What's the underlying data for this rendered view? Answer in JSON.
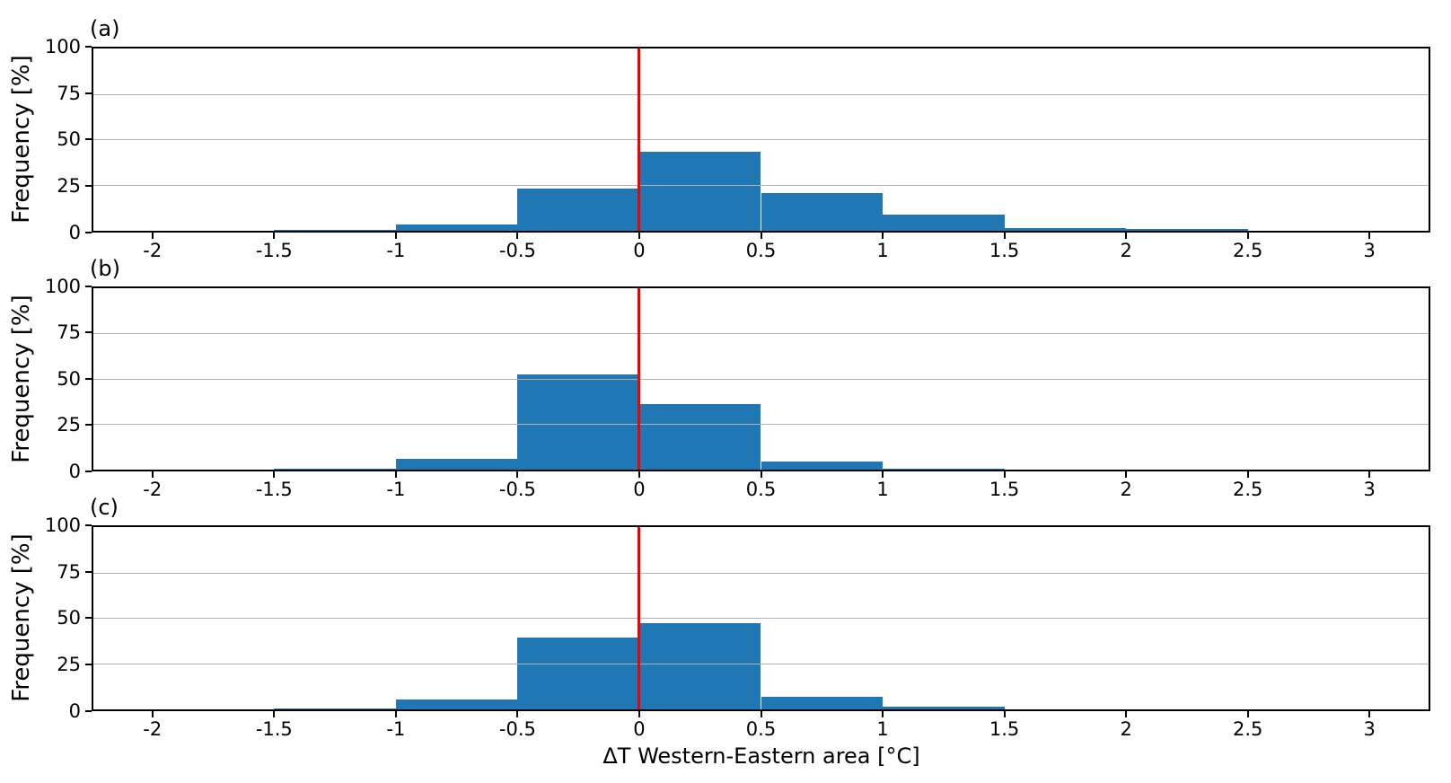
{
  "figure": {
    "xlabel": "ΔT Western-Eastern area [°C]",
    "ylabel": "Frequency [%]",
    "background_color": "#ffffff",
    "bar_color": "#1f77b4",
    "vline_color": "#f20000",
    "grid_color": "#b0b0b0",
    "axis_color": "#000000"
  },
  "chart_data": [
    {
      "type": "bar",
      "subtype": "histogram",
      "panel_label": "(a)",
      "ylabel": "Frequency [%]",
      "bin_edges": [
        -2,
        -1.5,
        -1,
        -0.5,
        0,
        0.5,
        1,
        1.5,
        2,
        2.5,
        3
      ],
      "frequencies_percent": [
        0,
        0.4,
        3.2,
        23.2,
        43.2,
        20.5,
        8.8,
        1.4,
        0.6,
        0
      ],
      "xlim": [
        -2.25,
        3.25
      ],
      "ylim": [
        0,
        100
      ],
      "yticks": [
        0,
        25,
        50,
        75,
        100
      ],
      "xticks": [
        -2,
        -1.5,
        -1,
        -0.5,
        0,
        0.5,
        1,
        1.5,
        2,
        2.5,
        3
      ],
      "xtick_labels": [
        "-2",
        "-1.5",
        "-1",
        "-0.5",
        "0",
        "0.5",
        "1",
        "1.5",
        "2",
        "2.5",
        "3"
      ],
      "vline_x": 0,
      "grid": "horizontal, drawn above bars",
      "legend": "none"
    },
    {
      "type": "bar",
      "subtype": "histogram",
      "panel_label": "(b)",
      "ylabel": "Frequency [%]",
      "bin_edges": [
        -2,
        -1.5,
        -1,
        -0.5,
        0,
        0.5,
        1,
        1.5,
        2,
        2.5,
        3
      ],
      "frequencies_percent": [
        0,
        0.4,
        6.0,
        52.3,
        36.0,
        4.5,
        0.6,
        0,
        0,
        0
      ],
      "xlim": [
        -2.25,
        3.25
      ],
      "ylim": [
        0,
        100
      ],
      "yticks": [
        0,
        25,
        50,
        75,
        100
      ],
      "xticks": [
        -2,
        -1.5,
        -1,
        -0.5,
        0,
        0.5,
        1,
        1.5,
        2,
        2.5,
        3
      ],
      "xtick_labels": [
        "-2",
        "-1.5",
        "-1",
        "-0.5",
        "0",
        "0.5",
        "1",
        "1.5",
        "2",
        "2.5",
        "3"
      ],
      "vline_x": 0,
      "grid": "horizontal, drawn above bars",
      "legend": "none"
    },
    {
      "type": "bar",
      "subtype": "histogram",
      "panel_label": "(c)",
      "ylabel": "Frequency [%]",
      "xlabel": "ΔT Western-Eastern area [°C]",
      "bin_edges": [
        -2,
        -1.5,
        -1,
        -0.5,
        0,
        0.5,
        1,
        1.5,
        2,
        2.5,
        3
      ],
      "frequencies_percent": [
        0,
        0.1,
        5.0,
        39.5,
        47.3,
        6.6,
        1.1,
        0,
        0,
        0
      ],
      "xlim": [
        -2.25,
        3.25
      ],
      "ylim": [
        0,
        100
      ],
      "yticks": [
        0,
        25,
        50,
        75,
        100
      ],
      "xticks": [
        -2,
        -1.5,
        -1,
        -0.5,
        0,
        0.5,
        1,
        1.5,
        2,
        2.5,
        3
      ],
      "xtick_labels": [
        "-2",
        "-1.5",
        "-1",
        "-0.5",
        "0",
        "0.5",
        "1",
        "1.5",
        "2",
        "2.5",
        "3"
      ],
      "vline_x": 0,
      "grid": "horizontal, drawn above bars",
      "legend": "none"
    }
  ]
}
